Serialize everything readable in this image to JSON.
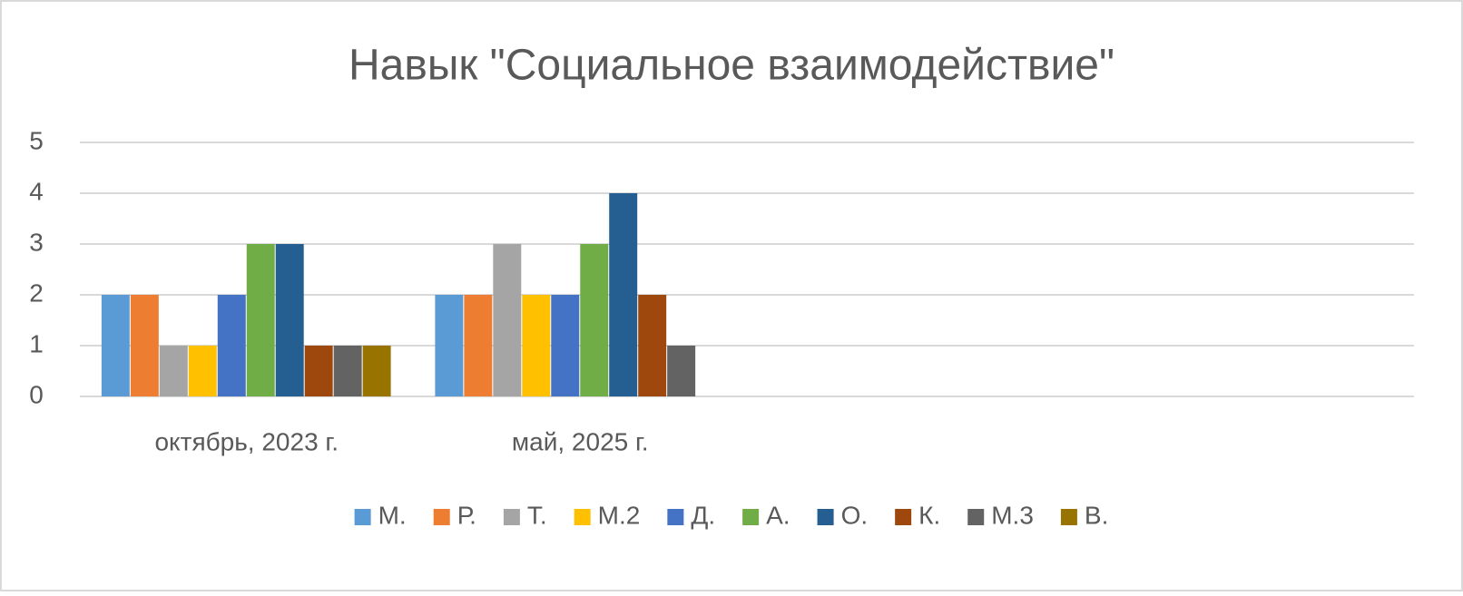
{
  "chart_data": {
    "type": "bar",
    "title": "Навык \"Социальное взаимодействие\"",
    "categories": [
      "октябрь, 2023 г.",
      "май, 2025 г.",
      null,
      null
    ],
    "series": [
      {
        "name": "М.",
        "color": "#5b9bd5",
        "values": [
          2,
          2,
          null,
          null
        ]
      },
      {
        "name": "Р.",
        "color": "#ed7d31",
        "values": [
          2,
          2,
          null,
          null
        ]
      },
      {
        "name": "Т.",
        "color": "#a5a5a5",
        "values": [
          1,
          3,
          null,
          null
        ]
      },
      {
        "name": "М.2",
        "color": "#ffc000",
        "values": [
          1,
          2,
          null,
          null
        ]
      },
      {
        "name": "Д.",
        "color": "#4472c4",
        "values": [
          2,
          2,
          null,
          null
        ]
      },
      {
        "name": "А.",
        "color": "#70ad47",
        "values": [
          3,
          3,
          null,
          null
        ]
      },
      {
        "name": "О.",
        "color": "#255e91",
        "values": [
          3,
          4,
          null,
          null
        ]
      },
      {
        "name": "К.",
        "color": "#9e480e",
        "values": [
          1,
          2,
          null,
          null
        ]
      },
      {
        "name": "М.3",
        "color": "#636363",
        "values": [
          1,
          1,
          null,
          null
        ]
      },
      {
        "name": "В.",
        "color": "#997300",
        "values": [
          1,
          null,
          null,
          null
        ]
      }
    ],
    "ylim": [
      0,
      5
    ],
    "yticks": [
      0,
      1,
      2,
      3,
      4,
      5
    ],
    "grid": true,
    "legend": "bottom"
  }
}
